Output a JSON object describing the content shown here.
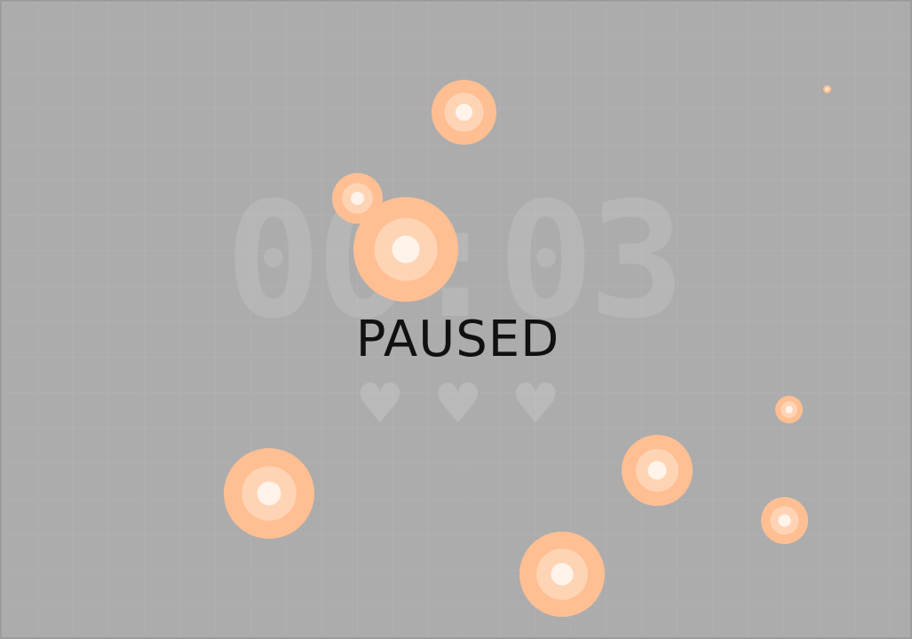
{
  "hud": {
    "timer": "00:03",
    "status": "PAUSED",
    "lives": [
      "♥",
      "♥",
      "♥"
    ]
  },
  "colors": {
    "background": "#acacac",
    "orb_outer": "#ffbf93",
    "orb_mid": "#ffd4b5",
    "orb_core": "#fff3ea",
    "orb_edge": "#f6a874",
    "status_text": "#111111"
  }
}
